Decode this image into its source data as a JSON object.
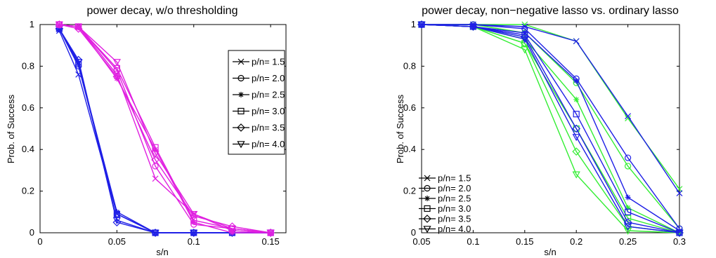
{
  "chart_data": [
    {
      "type": "line",
      "title": "power decay, w/o thresholding",
      "xlabel": "s/n",
      "ylabel": "Prob. of Success",
      "xlim": [
        0,
        0.16
      ],
      "ylim": [
        0,
        1
      ],
      "xticks": [
        0,
        0.05,
        0.1,
        0.15
      ],
      "yticks": [
        0,
        0.2,
        0.4,
        0.6,
        0.8,
        1
      ],
      "xtick_labels": [
        "0",
        "0.05",
        "0.1",
        "0.15"
      ],
      "ytick_labels": [
        "0",
        "0.2",
        "0.4",
        "0.6",
        "0.8",
        "1"
      ],
      "legend_position": "right",
      "legend_boxed": true,
      "x": [
        0.0125,
        0.025,
        0.05,
        0.075,
        0.1,
        0.125,
        0.15
      ],
      "groups": [
        {
          "method": "blue",
          "color": "#1f1fe6",
          "series": [
            {
              "name": "p/n= 1.5",
              "marker": "x",
              "values": [
                0.97,
                0.76,
                0.09,
                0.0,
                0.0,
                0.0,
                0.0
              ]
            },
            {
              "name": "p/n= 2.0",
              "marker": "circle",
              "values": [
                0.98,
                0.8,
                0.09,
                0.0,
                0.0,
                0.0,
                0.0
              ]
            },
            {
              "name": "p/n= 2.5",
              "marker": "star",
              "values": [
                0.98,
                0.81,
                0.1,
                0.0,
                0.0,
                0.0,
                0.0
              ]
            },
            {
              "name": "p/n= 3.0",
              "marker": "square",
              "values": [
                0.98,
                0.81,
                0.09,
                0.0,
                0.0,
                0.0,
                0.0
              ]
            },
            {
              "name": "p/n= 3.5",
              "marker": "diamond",
              "values": [
                0.98,
                0.83,
                0.05,
                0.0,
                0.0,
                0.0,
                0.0
              ]
            },
            {
              "name": "p/n= 4.0",
              "marker": "triangle-down",
              "values": [
                0.98,
                0.82,
                0.06,
                0.0,
                0.0,
                0.0,
                0.0
              ]
            }
          ]
        },
        {
          "method": "magenta",
          "color": "#e020e0",
          "series": [
            {
              "name": "p/n= 1.5",
              "marker": "x",
              "values": [
                1.0,
                0.99,
                0.76,
                0.26,
                0.09,
                0.01,
                0.0
              ]
            },
            {
              "name": "p/n= 2.0",
              "marker": "circle",
              "values": [
                1.0,
                0.99,
                0.78,
                0.32,
                0.04,
                0.02,
                0.0
              ]
            },
            {
              "name": "p/n= 2.5",
              "marker": "star",
              "values": [
                1.0,
                0.99,
                0.74,
                0.4,
                0.05,
                0.0,
                0.0
              ]
            },
            {
              "name": "p/n= 3.0",
              "marker": "square",
              "values": [
                1.0,
                0.99,
                0.79,
                0.41,
                0.06,
                0.02,
                0.0
              ]
            },
            {
              "name": "p/n= 3.5",
              "marker": "diamond",
              "values": [
                1.0,
                0.98,
                0.75,
                0.35,
                0.08,
                0.03,
                0.0
              ]
            },
            {
              "name": "p/n= 4.0",
              "marker": "triangle-down",
              "values": [
                1.0,
                0.99,
                0.82,
                0.38,
                0.09,
                0.02,
                0.0
              ]
            }
          ]
        }
      ]
    },
    {
      "type": "line",
      "title": "power decay, non−negative lasso vs. ordinary lasso",
      "xlabel": "s/n",
      "ylabel": "Prob. of Success",
      "xlim": [
        0.05,
        0.3
      ],
      "ylim": [
        0,
        1
      ],
      "xticks": [
        0.05,
        0.1,
        0.15,
        0.2,
        0.25,
        0.3
      ],
      "yticks": [
        0,
        0.2,
        0.4,
        0.6,
        0.8,
        1
      ],
      "xtick_labels": [
        "0.05",
        "0.1",
        "0.15",
        "0.2",
        "0.25",
        "0.3"
      ],
      "ytick_labels": [
        "0",
        "0.2",
        "0.4",
        "0.6",
        "0.8",
        "1"
      ],
      "legend_position": "bottom-left",
      "legend_boxed": false,
      "x": [
        0.05,
        0.1,
        0.15,
        0.2,
        0.25,
        0.3
      ],
      "groups": [
        {
          "method": "green",
          "color": "#33ee33",
          "series": [
            {
              "name": "p/n= 1.5",
              "marker": "x",
              "values": [
                1.0,
                1.0,
                1.0,
                0.92,
                0.55,
                0.21
              ]
            },
            {
              "name": "p/n= 2.0",
              "marker": "circle",
              "values": [
                1.0,
                1.0,
                0.96,
                0.72,
                0.32,
                0.02
              ]
            },
            {
              "name": "p/n= 2.5",
              "marker": "star",
              "values": [
                1.0,
                0.99,
                0.93,
                0.64,
                0.12,
                0.0
              ]
            },
            {
              "name": "p/n= 3.0",
              "marker": "square",
              "values": [
                1.0,
                0.99,
                0.91,
                0.5,
                0.07,
                0.0
              ]
            },
            {
              "name": "p/n= 3.5",
              "marker": "diamond",
              "values": [
                1.0,
                0.99,
                0.91,
                0.39,
                0.03,
                0.0
              ]
            },
            {
              "name": "p/n= 4.0",
              "marker": "triangle-down",
              "values": [
                1.0,
                0.99,
                0.88,
                0.28,
                0.01,
                0.0
              ]
            }
          ]
        },
        {
          "method": "blue",
          "color": "#1f1fe6",
          "series": [
            {
              "name": "p/n= 1.5",
              "marker": "x",
              "values": [
                1.0,
                1.0,
                0.99,
                0.92,
                0.56,
                0.19
              ]
            },
            {
              "name": "p/n= 2.0",
              "marker": "circle",
              "values": [
                1.0,
                1.0,
                0.98,
                0.74,
                0.36,
                0.02
              ]
            },
            {
              "name": "p/n= 2.5",
              "marker": "star",
              "values": [
                1.0,
                0.99,
                0.96,
                0.73,
                0.17,
                0.01
              ]
            },
            {
              "name": "p/n= 3.0",
              "marker": "square",
              "values": [
                1.0,
                0.99,
                0.95,
                0.57,
                0.1,
                0.0
              ]
            },
            {
              "name": "p/n= 3.5",
              "marker": "diamond",
              "values": [
                1.0,
                0.99,
                0.94,
                0.5,
                0.05,
                0.0
              ]
            },
            {
              "name": "p/n= 4.0",
              "marker": "triangle-down",
              "values": [
                1.0,
                0.99,
                0.93,
                0.46,
                0.03,
                0.0
              ]
            }
          ]
        }
      ]
    }
  ]
}
